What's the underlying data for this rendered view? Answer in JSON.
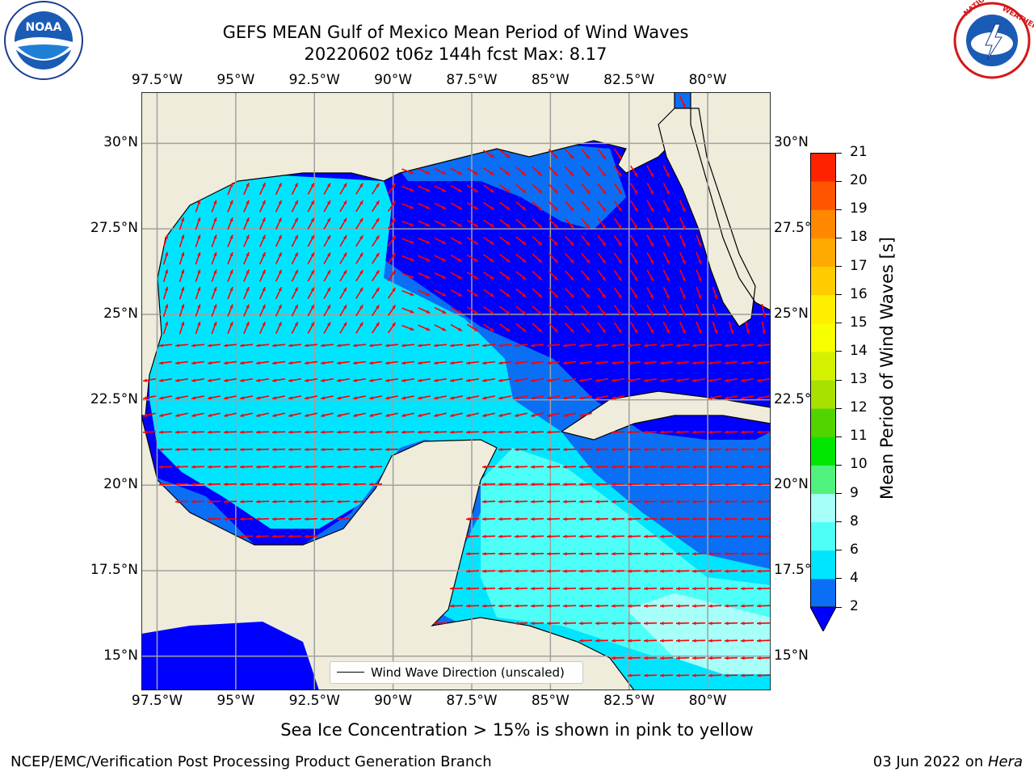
{
  "title": {
    "line1": "GEFS MEAN Gulf of Mexico Mean Period of Wind Waves",
    "line2": "20220602 t06z 144h fcst   Max: 8.17"
  },
  "logos": {
    "left": {
      "text": "NOAA",
      "ring": "NATIONAL OCEANIC AND ATMOSPHERIC ADMINISTRATION · U.S. DEPARTMENT OF COMMERCE"
    },
    "right": {
      "ring": "NATIONAL WEATHER SERVICE"
    }
  },
  "map": {
    "lon_range": [
      -98.0,
      -78.0
    ],
    "lat_range": [
      14.0,
      31.5
    ],
    "grid": true,
    "lon_ticks": [
      "97.5°W",
      "95°W",
      "92.5°W",
      "90°W",
      "87.5°W",
      "85°W",
      "82.5°W",
      "80°W"
    ],
    "lat_ticks_left": [
      "30°N",
      "27.5°N",
      "25°N",
      "22.5°N",
      "20°N",
      "17.5°N",
      "15°N"
    ],
    "lat_ticks_right": [
      "30°N",
      "27.5°N",
      "25°N",
      "22.5°N",
      "20°N",
      "17.5°N",
      "15°N"
    ],
    "land_color": "#efecdc",
    "arrow_color": "#ff0000"
  },
  "legend": {
    "label": "Wind Wave Direction (unscaled)"
  },
  "colorbar": {
    "label": "Mean Period of Wind Waves [s]",
    "ticks": [
      "2",
      "4",
      "6",
      "8",
      "9",
      "10",
      "11",
      "12",
      "13",
      "14",
      "15",
      "16",
      "17",
      "18",
      "19",
      "20",
      "21"
    ],
    "colors": [
      "#0a6ff5",
      "#00e5ff",
      "#4dfff6",
      "#a6fff8",
      "#50f27e",
      "#00e600",
      "#52d400",
      "#a8e000",
      "#d4f200",
      "#f7ff00",
      "#ffee00",
      "#ffcc00",
      "#ffaa00",
      "#ff8800",
      "#ff5500",
      "#ff2200"
    ],
    "under_color": "#0000ff"
  },
  "field_colors": {
    "lt2": "#0000ff",
    "2to4": "#0a6ff5",
    "4to6": "#00e5ff",
    "6to8": "#4dfff6",
    "8to9": "#a6fff8"
  },
  "subtitle": "Sea Ice Concentration > 15% is shown in pink to yellow",
  "footer": {
    "left": "NCEP/EMC/Verification Post Processing Product Generation Branch",
    "right_prefix": "03 Jun 2022 on ",
    "right_italic": "Hera"
  }
}
